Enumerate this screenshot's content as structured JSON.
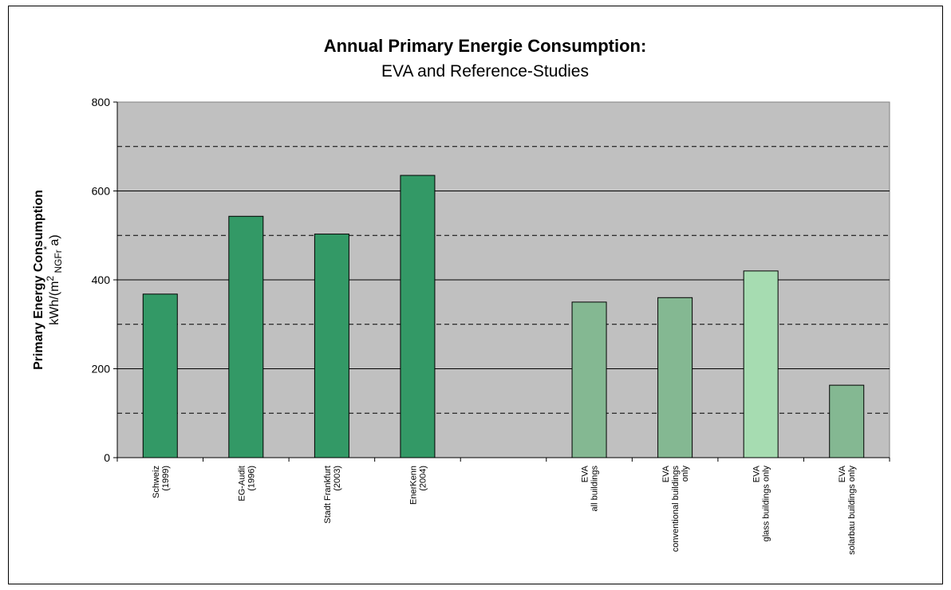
{
  "chart_data": {
    "type": "bar",
    "title": "Annual Primary Energie Consumption:",
    "subtitle": "EVA and Reference-Studies",
    "ylabel": "Primary Energy Consumption",
    "ylabel_unit": "kWh/(m² NGFr *a)",
    "ylim": [
      0,
      800
    ],
    "y_ticks": [
      0,
      200,
      400,
      600,
      800
    ],
    "grid": "solid lines at major ticks, dashed lines at 100, 300, 500, 700",
    "plot_background": "#c0c0c0",
    "categories": [
      [
        "Schweiz",
        "(1999)"
      ],
      [
        "EG-Audit",
        "(1996)"
      ],
      [
        "Stadt Frankfurt",
        "(2003)"
      ],
      [
        "EnerKenn",
        "(2004)"
      ],
      [
        ""
      ],
      [
        "EVA",
        "all buildings"
      ],
      [
        "EVA",
        "conventional buildings",
        "only"
      ],
      [
        "EVA",
        "glass buildings only"
      ],
      [
        "EVA",
        "solarbau buildings only"
      ]
    ],
    "values": [
      368,
      543,
      503,
      635,
      null,
      350,
      360,
      420,
      163
    ],
    "colors": [
      "#339966",
      "#339966",
      "#339966",
      "#339966",
      null,
      "#84b892",
      "#84b892",
      "#a6dcb1",
      "#84b892"
    ]
  }
}
